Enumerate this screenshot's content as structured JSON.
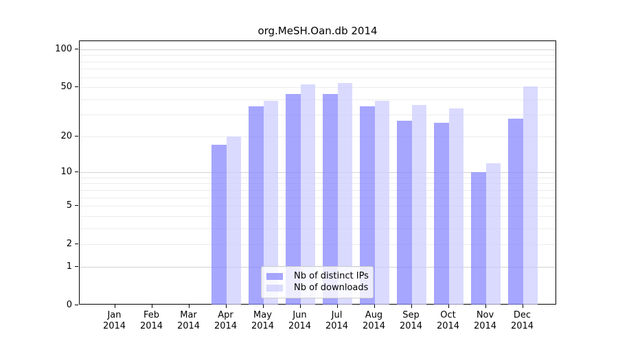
{
  "chart_data": {
    "type": "bar",
    "title": "org.MeSH.Oan.db 2014",
    "year": "2014",
    "categories": [
      "Jan",
      "Feb",
      "Mar",
      "Apr",
      "May",
      "Jun",
      "Jul",
      "Aug",
      "Sep",
      "Oct",
      "Nov",
      "Dec"
    ],
    "series": [
      {
        "name": "Nb of distinct IPs",
        "color": "#8080ff",
        "alpha": 0.7,
        "values": [
          0,
          0,
          0,
          17,
          35,
          44,
          44,
          35,
          27,
          26,
          10,
          28
        ]
      },
      {
        "name": "Nb of downloads",
        "color": "#ccccff",
        "alpha": 0.72,
        "values": [
          0,
          0,
          0,
          20,
          39,
          53,
          54,
          39,
          36,
          34,
          12,
          51
        ]
      }
    ],
    "xlabel": "",
    "ylabel": "",
    "y_axis": {
      "scale": "log1p",
      "ticks": [
        0,
        1,
        2,
        5,
        10,
        20,
        50,
        100
      ],
      "ylim": [
        0,
        115
      ]
    },
    "gridlines": {
      "major": [
        1,
        10,
        100
      ],
      "minor": [
        2,
        3,
        4,
        5,
        6,
        7,
        8,
        9,
        20,
        30,
        40,
        50,
        60,
        70,
        80,
        90
      ]
    },
    "legend": {
      "position": "bottom-center",
      "entries": [
        "Nb of distinct IPs",
        "Nb of downloads"
      ]
    }
  },
  "colors": {
    "bar_dark": "#a9a9fa",
    "bar_light": "#d9d9fa",
    "major_grid": "#d2d2d2",
    "minor_grid": "#ececec",
    "axis": "#000000",
    "text": "#000000",
    "legend_border": "#cccccc"
  }
}
